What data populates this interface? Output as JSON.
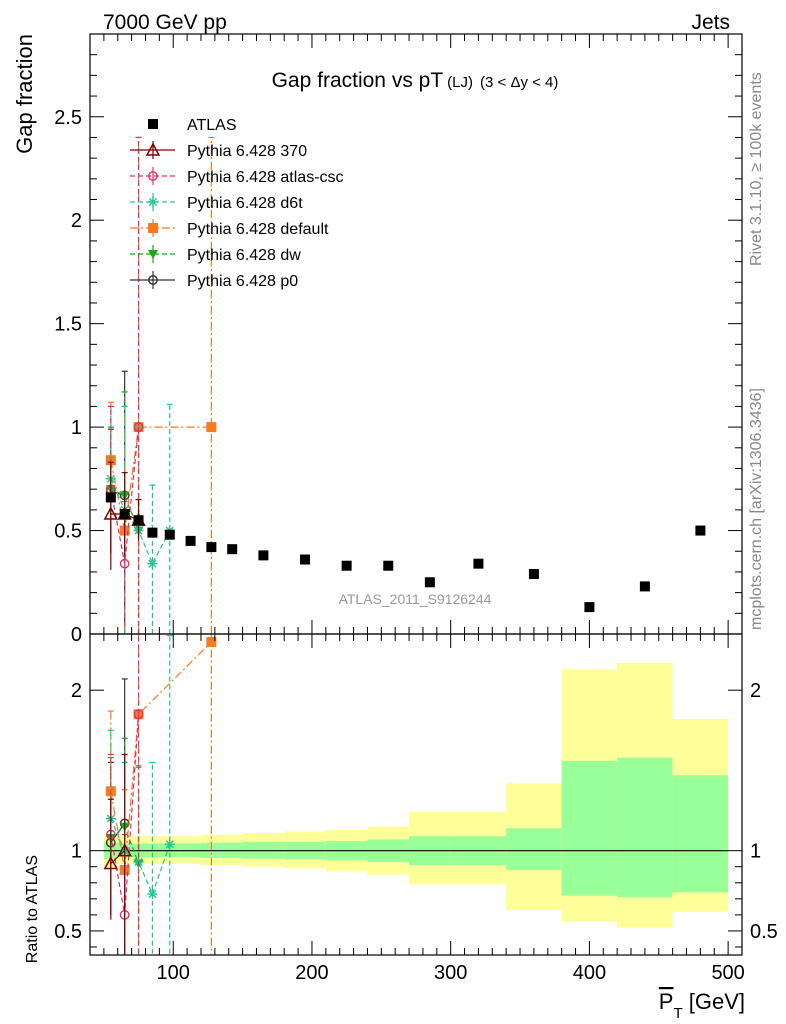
{
  "header": {
    "left": "7000 GeV pp",
    "right": "Jets"
  },
  "side_labels": {
    "rivet": "Rivet 3.1.10, ≥ 100k events",
    "mcplots": "mcplots.cern.ch [arXiv:1306.3436]"
  },
  "watermark": "ATLAS_2011_S9126244",
  "colors": {
    "atlas": "#000000",
    "p370": "#800000",
    "atlascsc": "#e0306a",
    "d6t": "#1ec98c",
    "default": "#f47b20",
    "dw": "#19a820",
    "p0": "#333333",
    "band_inner": "#99ff99",
    "band_outer": "#ffff99"
  },
  "chart_data": [
    {
      "type": "scatter",
      "title_main": "Gap fraction vs pT",
      "title_sub": "(LJ)",
      "title_cond": "(3 < Δy < 4)",
      "ylabel": "Gap fraction",
      "xlim": [
        40,
        510
      ],
      "ylim": [
        0,
        2.9
      ],
      "yticks": [
        0.5,
        1,
        1.5,
        2,
        2.5
      ],
      "ytick_labels": [
        "0.5",
        "1",
        "1.5",
        "2",
        "2.5"
      ],
      "ylabel_zero": "0",
      "legend_position": "top-left",
      "series": [
        {
          "name": "ATLAS",
          "key": "atlas",
          "marker": "square",
          "line": "none",
          "x": [
            55,
            65,
            75,
            85,
            97.5,
            112.5,
            127.5,
            142.5,
            165,
            195,
            225,
            255,
            285,
            320,
            360,
            400,
            440,
            480
          ],
          "y": [
            0.66,
            0.58,
            0.55,
            0.49,
            0.48,
            0.45,
            0.42,
            0.41,
            0.38,
            0.36,
            0.33,
            0.33,
            0.25,
            0.34,
            0.29,
            0.13,
            0.23,
            0.5
          ]
        },
        {
          "name": "Pythia 6.428 370",
          "key": "p370",
          "marker": "triangle-open",
          "line": "solid",
          "x": [
            55,
            65,
            75
          ],
          "y": [
            0.58,
            0.58,
            0.55
          ],
          "err_lo": [
            0.27,
            0.2,
            0.1
          ],
          "err_hi": [
            0.25,
            0.2,
            0.1
          ]
        },
        {
          "name": "Pythia 6.428 atlas-csc",
          "key": "atlascsc",
          "marker": "circle-open",
          "line": "dashed",
          "x": [
            55,
            65,
            75
          ],
          "y": [
            0.7,
            0.34,
            1.0
          ],
          "err_lo": [
            0.3,
            0.3,
            1.0
          ],
          "err_hi": [
            0.4,
            0.3,
            1.4
          ]
        },
        {
          "name": "Pythia 6.428 d6t",
          "key": "d6t",
          "marker": "star",
          "line": "dashed",
          "x": [
            55,
            65,
            75,
            85,
            97.5
          ],
          "y": [
            0.75,
            0.6,
            0.5,
            0.34,
            0.5
          ],
          "err_lo": [
            0.3,
            0.6,
            0.5,
            0.34,
            0.5
          ],
          "err_hi": [
            0.35,
            0.5,
            0.5,
            0.38,
            0.61
          ]
        },
        {
          "name": "Pythia 6.428 default",
          "key": "default",
          "marker": "square",
          "line": "dashdot",
          "x": [
            55,
            65,
            75,
            127.5
          ],
          "y": [
            0.84,
            0.5,
            1.0,
            1.0
          ],
          "err_lo": [
            0.3,
            0.5,
            1.0,
            1.0
          ],
          "err_hi": [
            0.28,
            0.6,
            1.4,
            1.4
          ]
        },
        {
          "name": "Pythia 6.428 dw",
          "key": "dw",
          "marker": "triangle-down",
          "line": "dashed",
          "x": [
            55,
            65,
            75
          ],
          "y": [
            0.7,
            0.67,
            0.5
          ],
          "err_lo": [
            0.3,
            0.67,
            0.5
          ],
          "err_hi": [
            0.3,
            0.5,
            0.5
          ]
        },
        {
          "name": "Pythia 6.428 p0",
          "key": "p0",
          "marker": "circle-open",
          "line": "solid",
          "x": [
            55,
            65
          ],
          "y": [
            0.69,
            0.67
          ],
          "err_lo": [
            0.3,
            0.67
          ],
          "err_hi": [
            0.3,
            0.6
          ]
        }
      ]
    },
    {
      "type": "line",
      "ylabel": "Ratio to ATLAS",
      "xlabel": "P̅T [GeV]",
      "xlim": [
        40,
        510
      ],
      "ylim": [
        0.35,
        2.35
      ],
      "yticks": [
        0.5,
        1,
        2
      ],
      "ytick_labels": [
        "0.5",
        "1",
        "2"
      ],
      "xticks": [
        100,
        200,
        300,
        400,
        500
      ],
      "xtick_labels": [
        "100",
        "200",
        "300",
        "400",
        "500"
      ],
      "bands": {
        "edges": [
          50,
          60,
          70,
          80,
          90,
          105,
          120,
          135,
          150,
          180,
          210,
          240,
          270,
          300,
          340,
          380,
          420,
          460,
          510
        ],
        "inner_lo": [
          0.95,
          0.96,
          0.96,
          0.96,
          0.96,
          0.96,
          0.955,
          0.955,
          0.95,
          0.945,
          0.94,
          0.93,
          0.91,
          0.91,
          0.88,
          0.72,
          0.71,
          0.74
        ],
        "inner_hi": [
          1.05,
          1.045,
          1.045,
          1.045,
          1.045,
          1.045,
          1.05,
          1.05,
          1.055,
          1.055,
          1.06,
          1.07,
          1.09,
          1.09,
          1.14,
          1.56,
          1.58,
          1.47
        ],
        "outer_lo": [
          0.9,
          0.92,
          0.92,
          0.92,
          0.92,
          0.92,
          0.91,
          0.91,
          0.9,
          0.89,
          0.87,
          0.85,
          0.79,
          0.79,
          0.63,
          0.56,
          0.52,
          0.62
        ],
        "outer_hi": [
          1.1,
          1.09,
          1.09,
          1.09,
          1.09,
          1.09,
          1.1,
          1.1,
          1.11,
          1.12,
          1.13,
          1.15,
          1.24,
          1.24,
          1.42,
          2.13,
          2.17,
          1.82
        ]
      },
      "series": [
        {
          "name": "Pythia 6.428 370",
          "key": "p370",
          "marker": "triangle-open",
          "line": "solid",
          "x": [
            55,
            65
          ],
          "y": [
            0.92,
            1.0
          ],
          "err_lo": [
            0.35,
            0.65
          ],
          "err_hi": [
            0.4,
            0.6
          ]
        },
        {
          "name": "Pythia 6.428 atlas-csc",
          "key": "atlascsc",
          "marker": "circle-open",
          "line": "dashed",
          "x": [
            55,
            65,
            75
          ],
          "y": [
            1.1,
            0.6,
            1.85
          ],
          "err_lo": [
            0.45,
            0.6,
            1.85
          ],
          "err_hi": [
            0.5,
            0.5,
            0.5
          ]
        },
        {
          "name": "Pythia 6.428 d6t",
          "key": "d6t",
          "marker": "star",
          "line": "dashed",
          "x": [
            55,
            65,
            75,
            85,
            97.5
          ],
          "y": [
            1.2,
            1.0,
            0.93,
            0.73,
            1.04
          ],
          "err_lo": [
            0.45,
            0.65,
            0.93,
            0.73,
            1.04
          ],
          "err_hi": [
            0.55,
            0.55,
            0.6,
            0.82,
            1.3
          ]
        },
        {
          "name": "Pythia 6.428 default",
          "key": "default",
          "marker": "square",
          "line": "dashdot",
          "x": [
            55,
            65,
            75,
            127.5
          ],
          "y": [
            1.37,
            0.88,
            1.85,
            2.3
          ],
          "err_lo": [
            0.45,
            0.88,
            1.85,
            2.3
          ],
          "err_hi": [
            0.5,
            0.5,
            0.5,
            0.5
          ]
        },
        {
          "name": "Pythia 6.428 dw",
          "key": "dw",
          "marker": "triangle-down",
          "line": "dashed",
          "x": [
            55,
            65,
            75
          ],
          "y": [
            1.08,
            1.15,
            0.92
          ],
          "err_lo": [
            0.45,
            0.65,
            0.92
          ],
          "err_hi": [
            0.5,
            0.55,
            0.6
          ]
        },
        {
          "name": "Pythia 6.428 p0",
          "key": "p0",
          "marker": "circle-open",
          "line": "solid",
          "x": [
            55,
            65
          ],
          "y": [
            1.05,
            1.17
          ],
          "err_lo": [
            0.45,
            0.8
          ],
          "err_hi": [
            0.5,
            0.9
          ]
        }
      ]
    }
  ]
}
